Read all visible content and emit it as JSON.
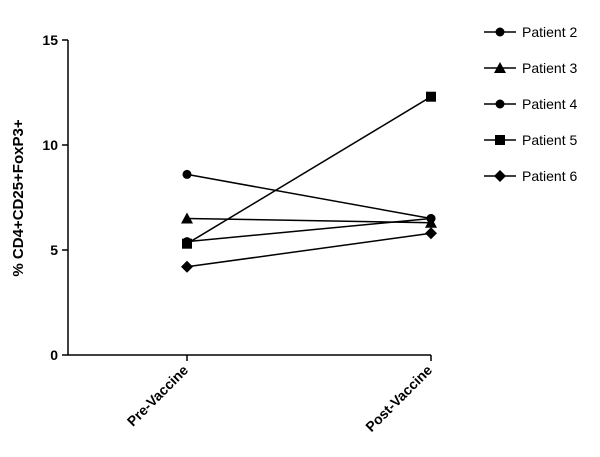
{
  "chart_data": {
    "type": "line",
    "ylabel": "% CD4+CD25+FoxP3+",
    "xlabel": "",
    "categories": [
      "Pre-Vaccine",
      "Post-Vaccine"
    ],
    "ylim": [
      0,
      15
    ],
    "yticks": [
      0,
      5,
      10,
      15
    ],
    "grid": false,
    "legend_position": "top-right",
    "series": [
      {
        "name": "Patient 2",
        "marker": "circle",
        "values": [
          5.4,
          6.5
        ]
      },
      {
        "name": "Patient 3",
        "marker": "triangle",
        "values": [
          6.5,
          6.3
        ]
      },
      {
        "name": "Patient 4",
        "marker": "circle",
        "values": [
          8.6,
          6.5
        ]
      },
      {
        "name": "Patient 5",
        "marker": "square",
        "values": [
          5.3,
          12.3
        ]
      },
      {
        "name": "Patient 6",
        "marker": "diamond",
        "values": [
          4.2,
          5.8
        ]
      }
    ]
  }
}
